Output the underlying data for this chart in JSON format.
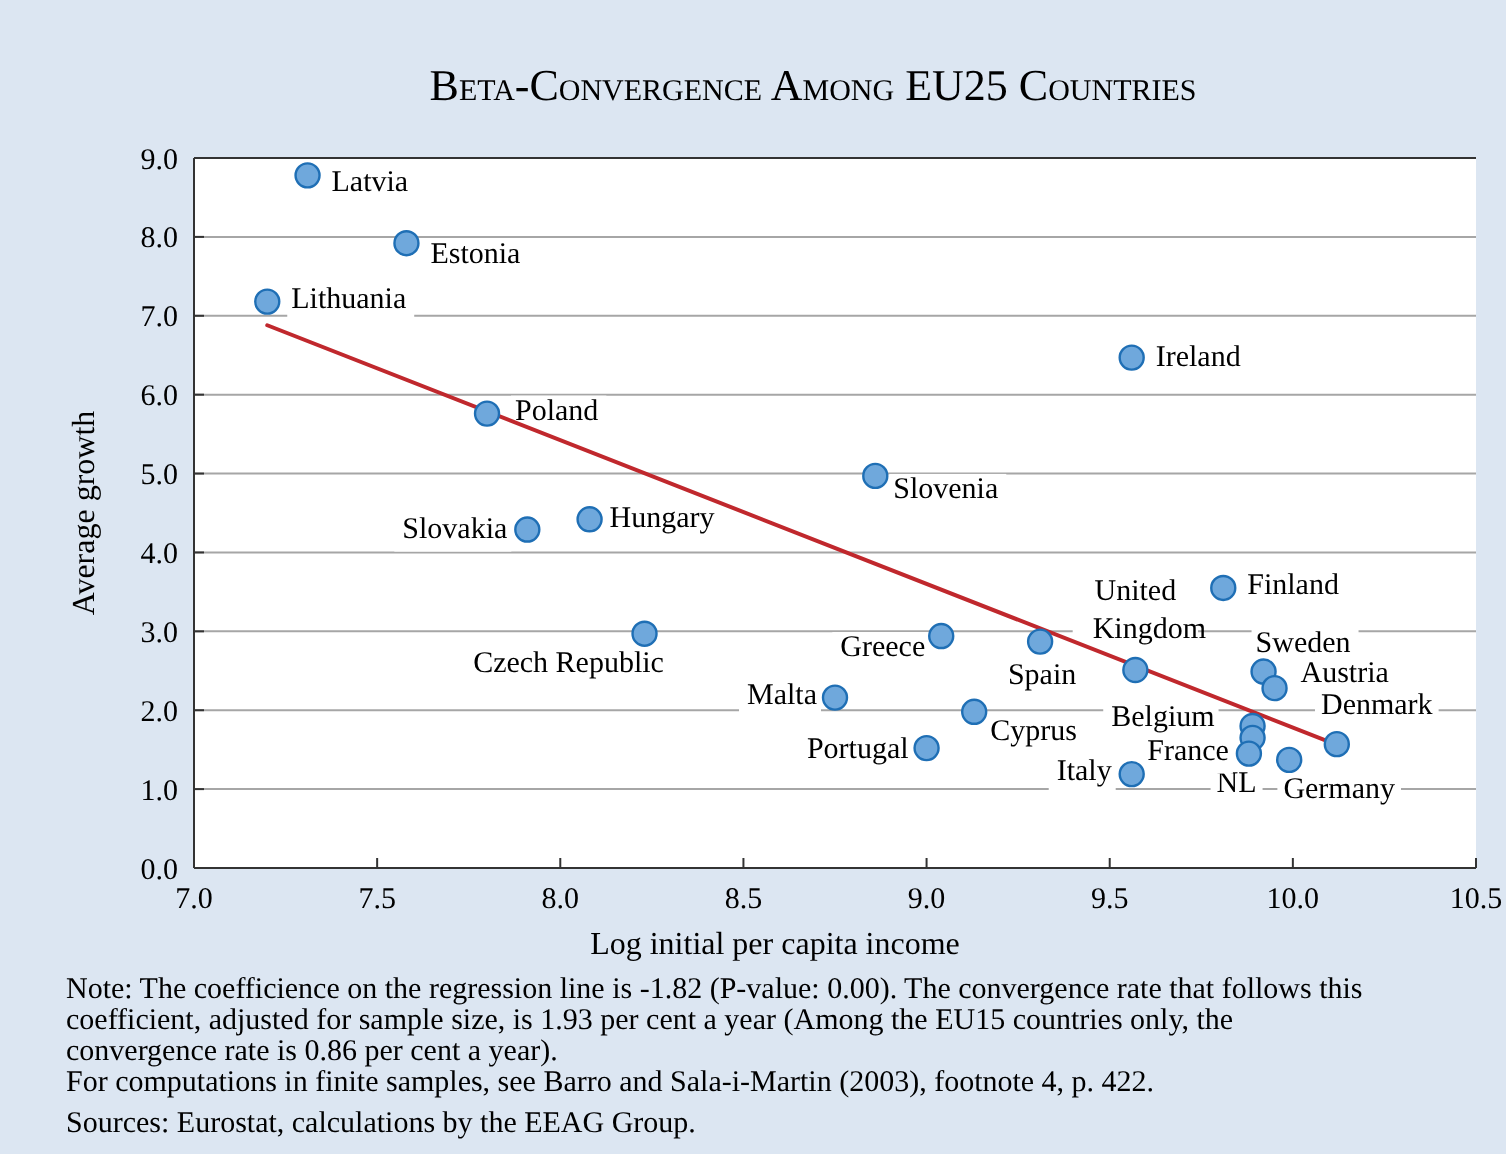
{
  "chart_data": {
    "type": "scatter",
    "title": "Beta-Convergence Among EU25 Countries",
    "xlabel": "Log initial per capita income",
    "ylabel": "Average growth",
    "xlim": [
      7,
      10.5
    ],
    "ylim": [
      0,
      9
    ],
    "xticks": [
      {
        "value": 7,
        "label": "7.0"
      },
      {
        "value": 7.5,
        "label": "7.5"
      },
      {
        "value": 8,
        "label": "8.0"
      },
      {
        "value": 8.5,
        "label": "8.5"
      },
      {
        "value": 9,
        "label": "9.0"
      },
      {
        "value": 9.5,
        "label": "9.5"
      },
      {
        "value": 10,
        "label": "10.0"
      },
      {
        "value": 10.5,
        "label": "10.5"
      }
    ],
    "yticks": [
      {
        "value": 0,
        "label": "0.0"
      },
      {
        "value": 1,
        "label": "1.0"
      },
      {
        "value": 2,
        "label": "2.0"
      },
      {
        "value": 3,
        "label": "3.0"
      },
      {
        "value": 4,
        "label": "4.0"
      },
      {
        "value": 5,
        "label": "5.0"
      },
      {
        "value": 6,
        "label": "6.0"
      },
      {
        "value": 7,
        "label": "7.0"
      },
      {
        "value": 8,
        "label": "8.0"
      },
      {
        "value": 9,
        "label": "9.0"
      }
    ],
    "grid": "y",
    "marker": "circle",
    "series": [
      {
        "color": "#6fa8dc",
        "x": [
          7.31,
          7.58,
          7.2,
          7.8,
          7.91,
          8.08,
          8.23,
          8.86,
          9.04,
          9.31,
          8.75,
          9.13,
          9.0,
          9.56,
          9.56,
          9.57,
          9.81,
          9.92,
          9.95,
          9.89,
          9.89,
          9.88,
          9.99,
          10.12
        ],
        "values": [
          8.78,
          7.92,
          7.18,
          5.76,
          4.29,
          4.42,
          2.97,
          4.97,
          2.94,
          2.87,
          2.16,
          1.98,
          1.52,
          6.47,
          1.19,
          2.51,
          3.55,
          2.49,
          2.28,
          1.8,
          1.65,
          1.45,
          1.37,
          1.57
        ]
      },
      {
        "type": "line",
        "color": "#c0282d",
        "x": [
          7.2,
          10.11
        ],
        "values": [
          6.88,
          1.58
        ],
        "line_style": "solid",
        "marker": "none"
      }
    ],
    "annotations": [
      {
        "text": "Latvia",
        "x": 7.31,
        "y": 8.78
      },
      {
        "text": "Estonia",
        "x": 7.58,
        "y": 7.92
      },
      {
        "text": "Lithuania",
        "x": 7.2,
        "y": 7.18
      },
      {
        "text": "Poland",
        "x": 7.8,
        "y": 5.76
      },
      {
        "text": "Slovakia",
        "x": 7.91,
        "y": 4.29
      },
      {
        "text": "Hungary",
        "x": 8.08,
        "y": 4.42
      },
      {
        "text": "Czech Republic",
        "x": 8.23,
        "y": 2.97
      },
      {
        "text": "Slovenia",
        "x": 8.86,
        "y": 4.97
      },
      {
        "text": "Greece",
        "x": 9.04,
        "y": 2.94
      },
      {
        "text": "Spain",
        "x": 9.31,
        "y": 2.87
      },
      {
        "text": "Malta",
        "x": 8.75,
        "y": 2.16
      },
      {
        "text": "Cyprus",
        "x": 9.13,
        "y": 1.98
      },
      {
        "text": "Portugal",
        "x": 9.0,
        "y": 1.52
      },
      {
        "text": "Ireland",
        "x": 9.56,
        "y": 6.47
      },
      {
        "text": "Italy",
        "x": 9.56,
        "y": 1.19
      },
      {
        "text": "United Kingdom",
        "x": 9.57,
        "y": 2.51
      },
      {
        "text": "Finland",
        "x": 9.81,
        "y": 3.55
      },
      {
        "text": "Sweden",
        "x": 9.92,
        "y": 2.49
      },
      {
        "text": "Austria",
        "x": 9.95,
        "y": 2.28
      },
      {
        "text": "Belgium",
        "x": 9.89,
        "y": 1.8
      },
      {
        "text": "NL",
        "x": 9.89,
        "y": 1.65
      },
      {
        "text": "France",
        "x": 9.88,
        "y": 1.45
      },
      {
        "text": "Germany",
        "x": 9.99,
        "y": 1.37
      },
      {
        "text": "Denmark",
        "x": 10.12,
        "y": 1.57
      },
      "Note: The coefficience on the regression line is -1.82 (P-value: 0.00). The convergence rate that follows this coefficient, adjusted for sample size, is 1.93 per cent a year (Among the EU15 countries only, the convergence rate is 0.86 per cent a year).",
      "For computations in finite samples, see Barro and Sala-i-Martin (2003), footnote 4, p. 422.",
      "Sources: Eurostat, calculations by the EEAG Group."
    ]
  }
}
